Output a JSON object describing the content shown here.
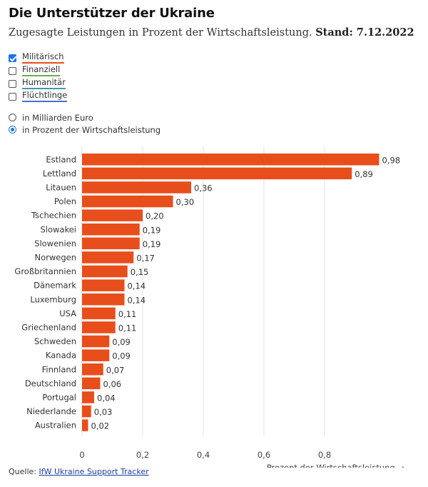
{
  "title": "Die Unterstützer der Ukraine",
  "subtitle": {
    "text": "Zugesagte Leistungen in Prozent der Wirtschaftsleistung.",
    "stand": "Stand: 7.12.2022"
  },
  "filters": [
    {
      "label": "Militärisch",
      "checked": true,
      "color": "#e84e1b"
    },
    {
      "label": "Finanziell",
      "checked": false,
      "color": "#6ab04c"
    },
    {
      "label": "Humanitär",
      "checked": false,
      "color": "#3d9aa6"
    },
    {
      "label": "Flüchtlinge",
      "checked": false,
      "color": "#4a6cd4"
    }
  ],
  "radios": [
    {
      "label": "in Milliarden Euro",
      "selected": false
    },
    {
      "label": "in Prozent der Wirtschaftsleistung",
      "selected": true
    }
  ],
  "source": {
    "prefix": "Quelle:",
    "link": "IfW Ukraine Support Tracker"
  },
  "chart_data": {
    "type": "bar",
    "orientation": "horizontal",
    "categories": [
      "Estland",
      "Lettland",
      "Litauen",
      "Polen",
      "Tschechien",
      "Slowakei",
      "Slowenien",
      "Norwegen",
      "Großbritannien",
      "Dänemark",
      "Luxemburg",
      "USA",
      "Griechenland",
      "Schweden",
      "Kanada",
      "Finnland",
      "Deutschland",
      "Portugal",
      "Niederlande",
      "Australien"
    ],
    "values": [
      0.98,
      0.89,
      0.36,
      0.3,
      0.2,
      0.19,
      0.19,
      0.17,
      0.15,
      0.14,
      0.14,
      0.11,
      0.11,
      0.09,
      0.09,
      0.07,
      0.06,
      0.04,
      0.03,
      0.02
    ],
    "value_labels": [
      "0,98",
      "0,89",
      "0,36",
      "0,30",
      "0,20",
      "0,19",
      "0,19",
      "0,17",
      "0,15",
      "0,14",
      "0,14",
      "0,11",
      "0,11",
      "0,09",
      "0,09",
      "0,07",
      "0,06",
      "0,04",
      "0,03",
      "0,02"
    ],
    "xticks": [
      0,
      0.2,
      0.4,
      0.6,
      0.8
    ],
    "xtick_labels": [
      "0",
      "0,2",
      "0,4",
      "0,6",
      "0,8"
    ],
    "xlim": [
      0,
      1.0
    ],
    "xlabel": "Prozent der Wirtschaftsleistung →",
    "grid": true,
    "bar_color": "#e84e1b"
  }
}
